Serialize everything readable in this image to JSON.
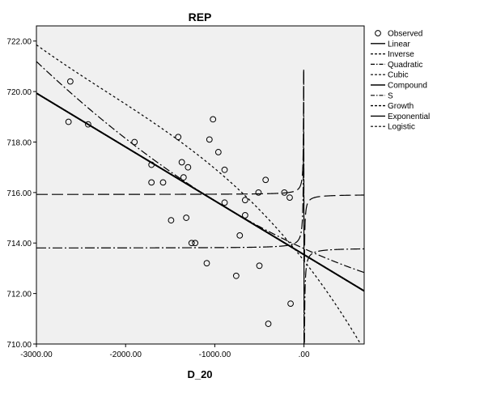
{
  "chart_data": {
    "type": "scatter",
    "title": "REP",
    "xlabel": "D_20",
    "ylabel": "",
    "xlim": [
      -3000,
      675
    ],
    "ylim": [
      710,
      722.6
    ],
    "xticks": [
      {
        "value": -3000,
        "label": "-3000.00"
      },
      {
        "value": -2000,
        "label": "-2000.00"
      },
      {
        "value": -1000,
        "label": "-1000.00"
      },
      {
        "value": 0,
        "label": ".00"
      }
    ],
    "yticks": [
      {
        "value": 710,
        "label": "710.00"
      },
      {
        "value": 712,
        "label": "712.00"
      },
      {
        "value": 714,
        "label": "714.00"
      },
      {
        "value": 716,
        "label": "716.00"
      },
      {
        "value": 718,
        "label": "718.00"
      },
      {
        "value": 720,
        "label": "720.00"
      },
      {
        "value": 722,
        "label": "722.00"
      }
    ],
    "background": "#f0f0f0",
    "legend_position": "right",
    "observed": {
      "name": "Observed",
      "points": [
        {
          "x": -2620,
          "y": 720.4
        },
        {
          "x": -2640,
          "y": 718.8
        },
        {
          "x": -2420,
          "y": 718.7
        },
        {
          "x": -1900,
          "y": 718.0
        },
        {
          "x": -1710,
          "y": 717.1
        },
        {
          "x": -1710,
          "y": 716.4
        },
        {
          "x": -1580,
          "y": 716.4
        },
        {
          "x": -1490,
          "y": 714.9
        },
        {
          "x": -1410,
          "y": 718.2
        },
        {
          "x": -1370,
          "y": 717.2
        },
        {
          "x": -1350,
          "y": 716.6
        },
        {
          "x": -1320,
          "y": 715.0
        },
        {
          "x": -1300,
          "y": 717.0
        },
        {
          "x": -1260,
          "y": 714.0
        },
        {
          "x": -1220,
          "y": 714.0
        },
        {
          "x": -1090,
          "y": 713.2
        },
        {
          "x": -1060,
          "y": 718.1
        },
        {
          "x": -1020,
          "y": 718.9
        },
        {
          "x": -960,
          "y": 717.6
        },
        {
          "x": -890,
          "y": 716.9
        },
        {
          "x": -890,
          "y": 715.6
        },
        {
          "x": -760,
          "y": 712.7
        },
        {
          "x": -720,
          "y": 714.3
        },
        {
          "x": -660,
          "y": 715.7
        },
        {
          "x": -660,
          "y": 715.1
        },
        {
          "x": -510,
          "y": 716.0
        },
        {
          "x": -500,
          "y": 713.1
        },
        {
          "x": -430,
          "y": 716.5
        },
        {
          "x": -400,
          "y": 710.8
        },
        {
          "x": -220,
          "y": 716.0
        },
        {
          "x": -160,
          "y": 715.8
        },
        {
          "x": -150,
          "y": 711.6
        }
      ]
    },
    "series": [
      {
        "name": "Linear",
        "model": "linear",
        "params": {
          "a": 713.54,
          "b": -0.002132
        },
        "dash": "solid",
        "width": 1.8
      },
      {
        "name": "Inverse",
        "model": "inverse",
        "params": {
          "a": 715.92,
          "b": -14
        },
        "dash": "14,5",
        "width": 1.2
      },
      {
        "name": "Quadratic",
        "model": "quadratic",
        "params": {
          "a": 713.78,
          "b": -0.0016,
          "c": 2.9e-07
        },
        "dash": "9,3,2,3",
        "width": 1.2
      },
      {
        "name": "Cubic",
        "model": "cubic",
        "params": {
          "a": 713.3,
          "b": -0.0045,
          "c": -1e-06,
          "d": -1.5e-10
        },
        "dash": "3,3",
        "width": 1.2
      },
      {
        "name": "Compound",
        "model": "linear",
        "params": {
          "a": 713.54,
          "b": -0.002132
        },
        "dash": "solid",
        "width": 1.8
      },
      {
        "name": "S",
        "model": "s",
        "params": {
          "b0": 6.5706,
          "b1": -0.028
        },
        "dash": "12,3,2,3",
        "width": 1.2
      },
      {
        "name": "Growth",
        "model": "linear",
        "params": {
          "a": 713.54,
          "b": -0.002132
        },
        "dash": "4,3",
        "width": 1.4
      },
      {
        "name": "Exponential",
        "model": "linear",
        "params": {
          "a": 713.54,
          "b": -0.002132
        },
        "dash": "solid",
        "width": 1.8
      },
      {
        "name": "Logistic",
        "model": "linear",
        "params": {
          "a": 713.54,
          "b": -0.002132
        },
        "dash": "8,4",
        "width": 1.2
      }
    ]
  }
}
